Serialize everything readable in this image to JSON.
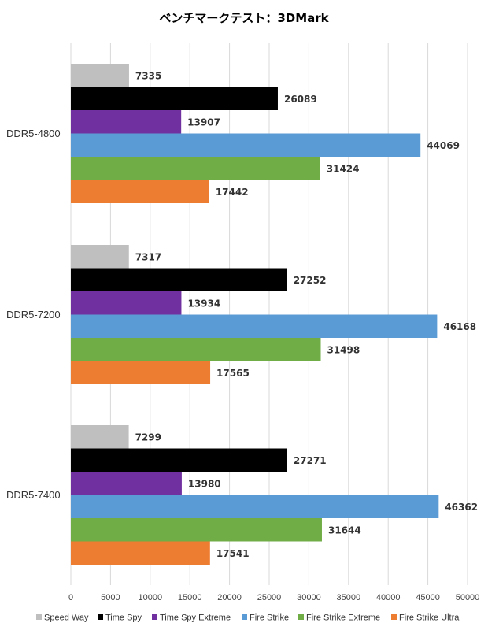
{
  "chart_data": {
    "type": "bar",
    "orientation": "horizontal",
    "title": "ベンチマークテスト：3DMark",
    "categories": [
      "DDR5-4800",
      "DDR5-7200",
      "DDR5-7400"
    ],
    "series": [
      {
        "name": "Speed Way",
        "color": "#bfbfbf",
        "values": [
          7335,
          7317,
          7299
        ]
      },
      {
        "name": "Time Spy",
        "color": "#000000",
        "values": [
          26089,
          27252,
          27271
        ]
      },
      {
        "name": "Time Spy Extreme",
        "color": "#7030a0",
        "values": [
          13907,
          13934,
          13980
        ]
      },
      {
        "name": "Fire Strike",
        "color": "#5b9bd5",
        "values": [
          44069,
          46168,
          46362
        ]
      },
      {
        "name": "Fire Strike Extreme",
        "color": "#70ad47",
        "values": [
          31424,
          31498,
          31644
        ]
      },
      {
        "name": "Fire Strike Ultra",
        "color": "#ed7d31",
        "values": [
          17442,
          17565,
          17541
        ]
      }
    ],
    "xlim": [
      0,
      50000
    ],
    "xticks": [
      0,
      5000,
      10000,
      15000,
      20000,
      25000,
      30000,
      35000,
      40000,
      45000,
      50000
    ],
    "xlabel": "",
    "ylabel": "",
    "grid": true,
    "legend_position": "bottom"
  }
}
